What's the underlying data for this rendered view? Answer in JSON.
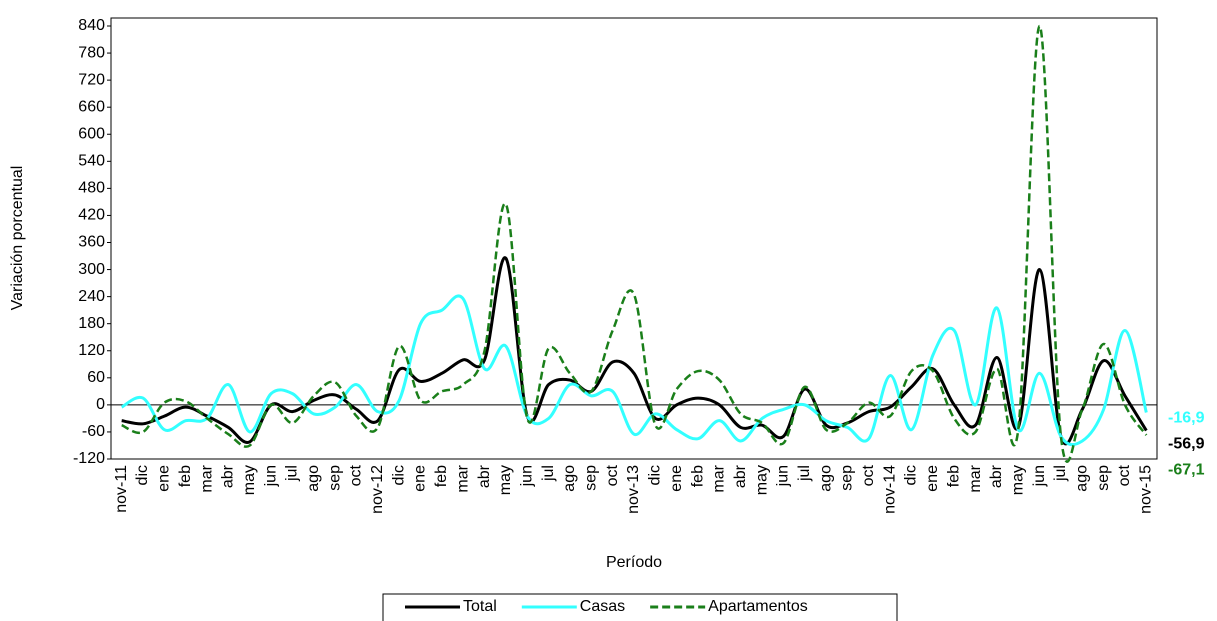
{
  "chart_data": {
    "type": "line",
    "y_label": "Variación porcentual",
    "x_label": "Período",
    "categories": [
      "nov-11",
      "dic",
      "ene",
      "feb",
      "mar",
      "abr",
      "may",
      "jun",
      "jul",
      "ago",
      "sep",
      "oct",
      "nov-12",
      "dic",
      "ene",
      "feb",
      "mar",
      "abr",
      "may",
      "jun",
      "jul",
      "ago",
      "sep",
      "oct",
      "nov-13",
      "dic",
      "ene",
      "feb",
      "mar",
      "abr",
      "may",
      "jun",
      "jul",
      "ago",
      "sep",
      "oct",
      "nov-14",
      "dic",
      "ene",
      "feb",
      "mar",
      "abr",
      "may",
      "jun",
      "jul",
      "ago",
      "sep",
      "oct",
      "nov-15"
    ],
    "ylim": [
      -120,
      840
    ],
    "yticks": [
      -120,
      -60,
      0,
      60,
      120,
      180,
      240,
      300,
      360,
      420,
      480,
      540,
      600,
      660,
      720,
      780,
      840
    ],
    "legend": "bottom",
    "series": [
      {
        "name": "Total",
        "color": "#000000",
        "dashed": false,
        "values": [
          -35,
          -42,
          -25,
          -5,
          -25,
          -50,
          -82,
          0,
          -15,
          10,
          22,
          -10,
          -35,
          78,
          52,
          70,
          100,
          100,
          325,
          -25,
          45,
          55,
          30,
          95,
          70,
          -30,
          0,
          15,
          0,
          -50,
          -45,
          -70,
          35,
          -45,
          -40,
          -15,
          -5,
          40,
          80,
          0,
          -45,
          105,
          -50,
          300,
          -70,
          -10,
          98,
          20,
          -56.9
        ],
        "value_labels": [
          null,
          null,
          null,
          null,
          null,
          null,
          null,
          null,
          null,
          null,
          null,
          null,
          null,
          null,
          null,
          null,
          null,
          null,
          null,
          null,
          null,
          null,
          null,
          null,
          null,
          null,
          null,
          null,
          null,
          null,
          null,
          null,
          null,
          null,
          null,
          null,
          null,
          null,
          null,
          null,
          null,
          null,
          null,
          null,
          null,
          null,
          null,
          null,
          "-56,9"
        ]
      },
      {
        "name": "Casas",
        "color": "#33ffff",
        "dashed": false,
        "values": [
          -5,
          15,
          -55,
          -35,
          -30,
          45,
          -60,
          25,
          25,
          -20,
          -5,
          45,
          -15,
          10,
          180,
          210,
          235,
          80,
          130,
          -25,
          -30,
          45,
          20,
          30,
          -65,
          -20,
          -55,
          -75,
          -35,
          -80,
          -30,
          -10,
          0,
          -35,
          -50,
          -75,
          65,
          -55,
          110,
          165,
          0,
          215,
          -55,
          70,
          -70,
          -80,
          -10,
          165,
          -16.9
        ],
        "value_labels": [
          null,
          null,
          null,
          null,
          null,
          null,
          null,
          null,
          null,
          null,
          null,
          null,
          null,
          null,
          null,
          null,
          null,
          null,
          null,
          null,
          null,
          null,
          null,
          null,
          null,
          null,
          null,
          null,
          null,
          null,
          null,
          null,
          null,
          null,
          null,
          null,
          null,
          null,
          null,
          null,
          null,
          null,
          null,
          null,
          null,
          null,
          null,
          null,
          "-16,9"
        ]
      },
      {
        "name": "Apartamentos",
        "color": "#1a7f1a",
        "dashed": true,
        "values": [
          -45,
          -60,
          5,
          8,
          -30,
          -65,
          -90,
          0,
          -40,
          20,
          50,
          -25,
          -50,
          130,
          10,
          30,
          45,
          120,
          445,
          -30,
          125,
          70,
          30,
          165,
          245,
          -45,
          35,
          75,
          55,
          -20,
          -40,
          -85,
          40,
          -55,
          -40,
          5,
          -25,
          75,
          75,
          -30,
          -60,
          80,
          -55,
          840,
          -70,
          -10,
          135,
          0,
          -67.1
        ],
        "value_labels": [
          null,
          null,
          null,
          null,
          null,
          null,
          null,
          null,
          null,
          null,
          null,
          null,
          null,
          null,
          null,
          null,
          null,
          null,
          null,
          null,
          null,
          null,
          null,
          null,
          null,
          null,
          null,
          null,
          null,
          null,
          null,
          null,
          null,
          null,
          null,
          null,
          null,
          null,
          null,
          null,
          null,
          null,
          null,
          null,
          null,
          null,
          null,
          null,
          "-67,1"
        ]
      }
    ]
  }
}
